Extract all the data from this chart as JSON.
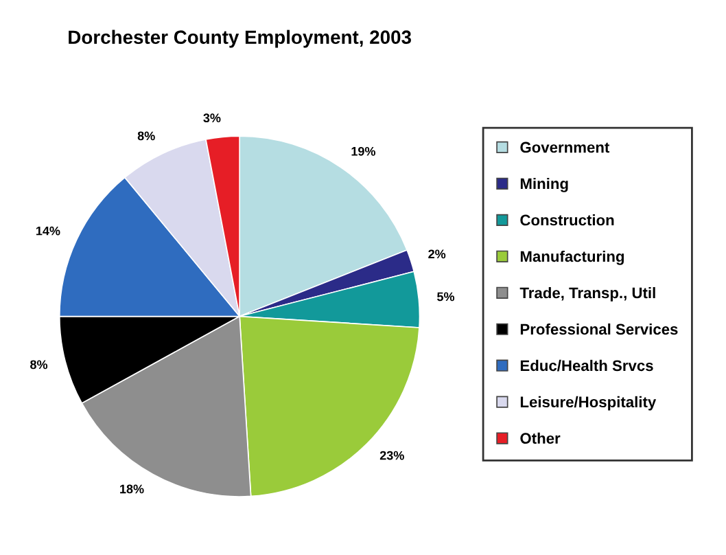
{
  "chart_data": {
    "type": "pie",
    "title": "Dorchester County Employment, 2003",
    "categories": [
      "Government",
      "Mining",
      "Construction",
      "Manufacturing",
      "Trade, Transp., Util",
      "Professional Services",
      "Educ/Health Srvcs",
      "Leisure/Hospitality",
      "Other"
    ],
    "values": [
      19,
      2,
      5,
      23,
      18,
      8,
      14,
      8,
      3
    ],
    "colors": [
      "#b5dde2",
      "#2b2b88",
      "#12999a",
      "#9acb3a",
      "#8e8e8e",
      "#000000",
      "#2f6cbf",
      "#d9d9ee",
      "#e61e26"
    ],
    "value_labels": [
      "19%",
      "2%",
      "5%",
      "23%",
      "18%",
      "8%",
      "14%",
      "8%",
      "3%"
    ],
    "legend": "right"
  }
}
